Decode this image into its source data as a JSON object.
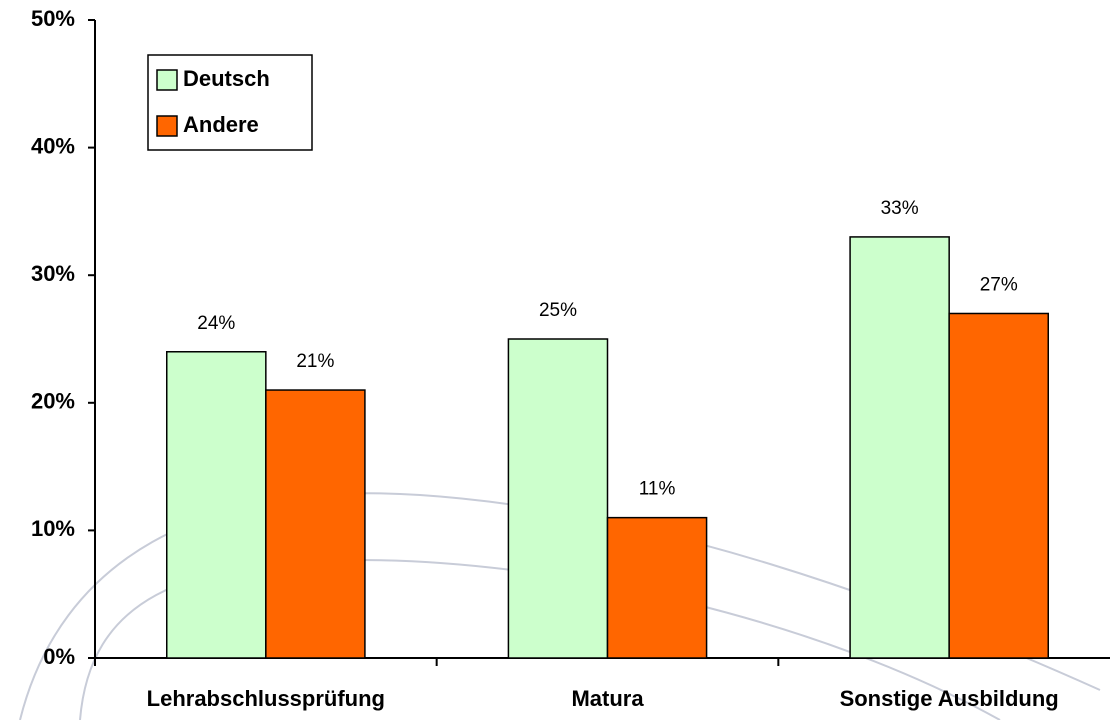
{
  "chart_data": {
    "type": "bar",
    "categories": [
      "Lehrabschlussprüfung",
      "Matura",
      "Sonstige Ausbildung"
    ],
    "series": [
      {
        "name": "Deutsch",
        "color": "#ccffcc",
        "values": [
          24,
          25,
          33
        ],
        "value_labels": [
          "24%",
          "25%",
          "33%"
        ]
      },
      {
        "name": "Andere",
        "color": "#ff6600",
        "values": [
          21,
          11,
          27
        ],
        "value_labels": [
          "21%",
          "11%",
          "27%"
        ]
      }
    ],
    "ylim": [
      0,
      50
    ],
    "yticks": [
      {
        "value": 0,
        "label": "0%"
      },
      {
        "value": 10,
        "label": "10%"
      },
      {
        "value": 20,
        "label": "20%"
      },
      {
        "value": 30,
        "label": "30%"
      },
      {
        "value": 40,
        "label": "40%"
      },
      {
        "value": 50,
        "label": "50%"
      }
    ],
    "legend": "top-left"
  }
}
